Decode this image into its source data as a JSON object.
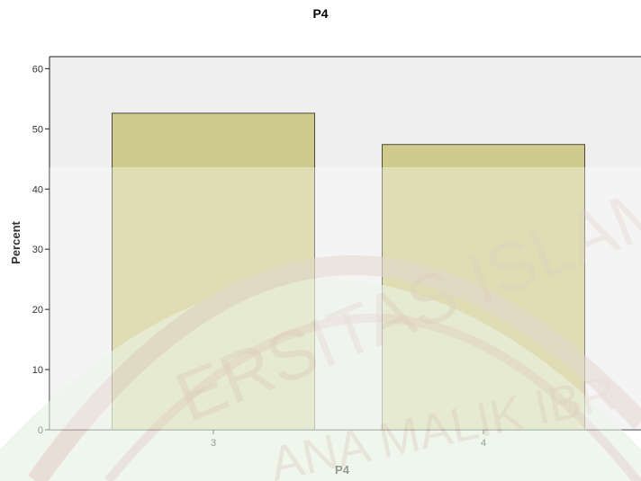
{
  "colors": {
    "plot_background": "#efefef",
    "bar_fill": "#cfcb8d",
    "bar_stroke": "#4a4a3a",
    "axis": "#222222",
    "watermark_green": "#e2f0dd",
    "watermark_ink": "#c9ad9f"
  },
  "chart_data": {
    "type": "bar",
    "title": "P4",
    "xlabel": "P4",
    "ylabel": "Percent",
    "categories": [
      "3",
      "4"
    ],
    "values": [
      52.6,
      47.4
    ],
    "ylim": [
      0,
      62
    ],
    "yticks": [
      "0",
      "10",
      "20",
      "30",
      "40",
      "50",
      "60"
    ],
    "grid": false,
    "legend": "none"
  },
  "watermark": {
    "arc_top": "ERSITAS ISLAM",
    "arc_inner": "ANA MALIK IBR"
  }
}
